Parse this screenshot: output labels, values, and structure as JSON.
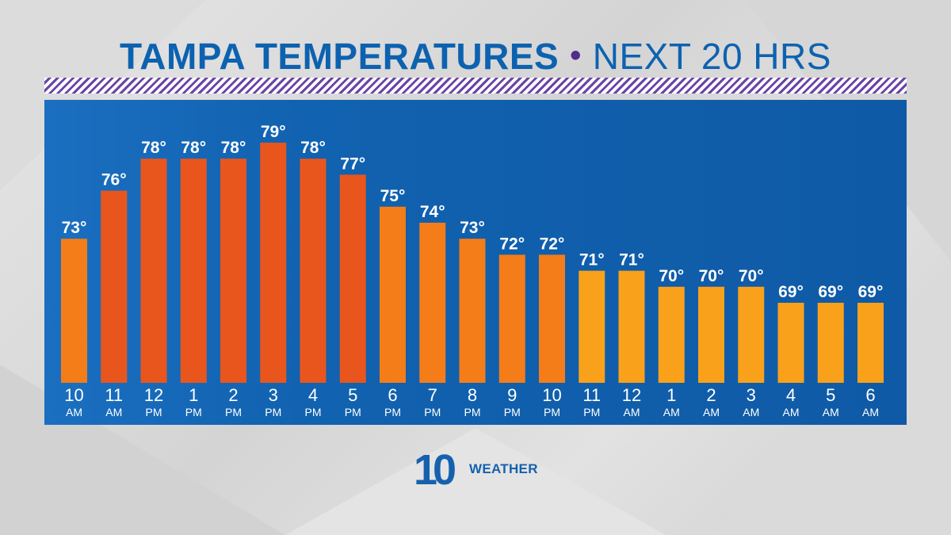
{
  "title": {
    "main": "TAMPA TEMPERATURES",
    "separator": "•",
    "sub": "NEXT 20 HRS"
  },
  "logo": {
    "number": "10",
    "text": "WEATHER"
  },
  "colors": {
    "title": "#0d62b0",
    "panel": "#1162b0",
    "stripe": "#6a44a6",
    "bar_hot": "#e8561e",
    "bar_warm": "#f47d1a",
    "bar_cool": "#f9a11a"
  },
  "chart_data": {
    "type": "bar",
    "title": "TAMPA TEMPERATURES • NEXT 20 HRS",
    "categories": [
      "10 AM",
      "11 AM",
      "12 PM",
      "1 PM",
      "2 PM",
      "3 PM",
      "4 PM",
      "5 PM",
      "6 PM",
      "7 PM",
      "8 PM",
      "9 PM",
      "10 PM",
      "11 PM",
      "12 AM",
      "1 AM",
      "2 AM",
      "3 AM",
      "4 AM",
      "5 AM",
      "6 AM"
    ],
    "tick_labels": [
      {
        "hour": "10",
        "period": "AM"
      },
      {
        "hour": "11",
        "period": "AM"
      },
      {
        "hour": "12",
        "period": "PM"
      },
      {
        "hour": "1",
        "period": "PM"
      },
      {
        "hour": "2",
        "period": "PM"
      },
      {
        "hour": "3",
        "period": "PM"
      },
      {
        "hour": "4",
        "period": "PM"
      },
      {
        "hour": "5",
        "period": "PM"
      },
      {
        "hour": "6",
        "period": "PM"
      },
      {
        "hour": "7",
        "period": "PM"
      },
      {
        "hour": "8",
        "period": "PM"
      },
      {
        "hour": "9",
        "period": "PM"
      },
      {
        "hour": "10",
        "period": "PM"
      },
      {
        "hour": "11",
        "period": "PM"
      },
      {
        "hour": "12",
        "period": "AM"
      },
      {
        "hour": "1",
        "period": "AM"
      },
      {
        "hour": "2",
        "period": "AM"
      },
      {
        "hour": "3",
        "period": "AM"
      },
      {
        "hour": "4",
        "period": "AM"
      },
      {
        "hour": "5",
        "period": "AM"
      },
      {
        "hour": "6",
        "period": "AM"
      }
    ],
    "values": [
      73,
      76,
      78,
      78,
      78,
      79,
      78,
      77,
      75,
      74,
      73,
      72,
      72,
      71,
      71,
      70,
      70,
      70,
      69,
      69,
      69
    ],
    "data_labels": [
      "73°",
      "76°",
      "78°",
      "78°",
      "78°",
      "79°",
      "78°",
      "77°",
      "75°",
      "74°",
      "73°",
      "72°",
      "72°",
      "71°",
      "71°",
      "70°",
      "70°",
      "70°",
      "69°",
      "69°",
      "69°"
    ],
    "unit": "°F",
    "xlabel": "",
    "ylabel": "",
    "ylim": [
      64,
      79
    ]
  }
}
